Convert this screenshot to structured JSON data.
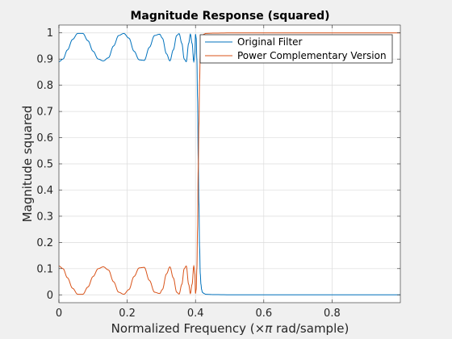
{
  "chart_data": {
    "type": "line",
    "title": "Magnitude Response (squared)",
    "xlabel_prefix": "Normalized Frequency  (",
    "xlabel_symbol": "×π",
    "xlabel_suffix": " rad/sample)",
    "ylabel": "Magnitude squared",
    "xlim": [
      0,
      1
    ],
    "ylim": [
      -0.03,
      1.03
    ],
    "xticks": [
      0,
      0.2,
      0.4,
      0.6,
      0.8
    ],
    "xtick_labels": [
      "0",
      "0.2",
      "0.4",
      "0.6",
      "0.8"
    ],
    "yticks": [
      0,
      0.1,
      0.2,
      0.3,
      0.4,
      0.5,
      0.6,
      0.7,
      0.8,
      0.9,
      1
    ],
    "ytick_labels": [
      "0",
      "0.1",
      "0.2",
      "0.3",
      "0.4",
      "0.5",
      "0.6",
      "0.7",
      "0.8",
      "0.9",
      "1"
    ],
    "grid": true,
    "legend_position": "top-right",
    "series": [
      {
        "name": "Original Filter",
        "color": "#0072bd",
        "x": [
          0,
          0.012,
          0.025,
          0.04,
          0.055,
          0.07,
          0.085,
          0.1,
          0.115,
          0.13,
          0.145,
          0.16,
          0.175,
          0.19,
          0.205,
          0.22,
          0.235,
          0.25,
          0.265,
          0.28,
          0.295,
          0.303,
          0.315,
          0.325,
          0.335,
          0.345,
          0.352,
          0.36,
          0.367,
          0.373,
          0.38,
          0.385,
          0.39,
          0.395,
          0.398,
          0.4,
          0.402,
          0.404,
          0.406,
          0.408,
          0.41,
          0.412,
          0.414,
          0.416,
          0.418,
          0.42,
          0.425,
          0.43,
          0.45,
          0.5,
          0.6,
          0.7,
          0.8,
          0.9,
          1.0
        ],
        "y": [
          0.89,
          0.9,
          0.935,
          0.975,
          0.998,
          0.998,
          0.97,
          0.93,
          0.9,
          0.893,
          0.905,
          0.95,
          0.99,
          0.998,
          0.98,
          0.93,
          0.897,
          0.895,
          0.945,
          0.99,
          0.995,
          0.98,
          0.92,
          0.893,
          0.935,
          0.99,
          0.997,
          0.96,
          0.9,
          0.89,
          0.96,
          0.995,
          0.96,
          0.89,
          0.92,
          0.995,
          0.98,
          0.9,
          0.75,
          0.52,
          0.35,
          0.18,
          0.08,
          0.04,
          0.02,
          0.01,
          0.005,
          0.002,
          0.001,
          0,
          0,
          0,
          0,
          0,
          0
        ]
      },
      {
        "name": "Power Complementary Version",
        "color": "#d95319",
        "x": [
          0,
          0.012,
          0.025,
          0.04,
          0.055,
          0.07,
          0.085,
          0.1,
          0.115,
          0.13,
          0.145,
          0.16,
          0.175,
          0.19,
          0.205,
          0.22,
          0.235,
          0.25,
          0.265,
          0.28,
          0.295,
          0.303,
          0.315,
          0.325,
          0.335,
          0.345,
          0.352,
          0.36,
          0.367,
          0.373,
          0.38,
          0.385,
          0.39,
          0.395,
          0.398,
          0.4,
          0.402,
          0.404,
          0.406,
          0.408,
          0.41,
          0.412,
          0.414,
          0.416,
          0.418,
          0.42,
          0.425,
          0.43,
          0.45,
          0.5,
          0.6,
          0.7,
          0.8,
          0.9,
          1.0
        ],
        "y": [
          0.11,
          0.1,
          0.065,
          0.025,
          0.002,
          0.002,
          0.03,
          0.07,
          0.1,
          0.107,
          0.095,
          0.05,
          0.01,
          0.002,
          0.02,
          0.07,
          0.103,
          0.105,
          0.055,
          0.01,
          0.005,
          0.02,
          0.08,
          0.107,
          0.065,
          0.01,
          0.003,
          0.04,
          0.1,
          0.11,
          0.04,
          0.005,
          0.04,
          0.11,
          0.08,
          0.005,
          0.02,
          0.1,
          0.25,
          0.48,
          0.65,
          0.82,
          0.92,
          0.96,
          0.98,
          0.99,
          0.995,
          0.998,
          0.999,
          1,
          1,
          1,
          1,
          1,
          1
        ]
      }
    ]
  }
}
